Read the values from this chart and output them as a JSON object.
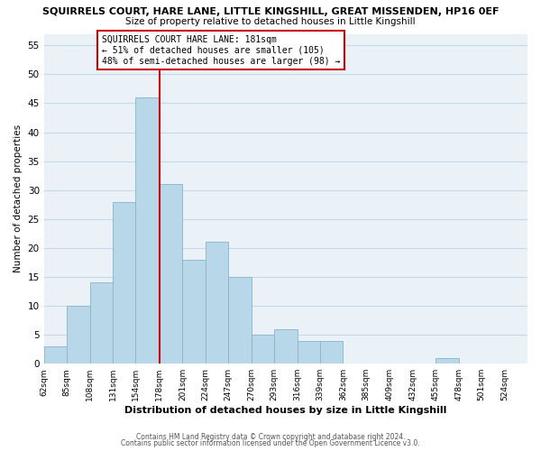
{
  "title1": "SQUIRRELS COURT, HARE LANE, LITTLE KINGSHILL, GREAT MISSENDEN, HP16 0EF",
  "title2": "Size of property relative to detached houses in Little Kingshill",
  "xlabel": "Distribution of detached houses by size in Little Kingshill",
  "ylabel": "Number of detached properties",
  "bin_labels": [
    "62sqm",
    "85sqm",
    "108sqm",
    "131sqm",
    "154sqm",
    "178sqm",
    "201sqm",
    "224sqm",
    "247sqm",
    "270sqm",
    "293sqm",
    "316sqm",
    "339sqm",
    "362sqm",
    "385sqm",
    "409sqm",
    "432sqm",
    "455sqm",
    "478sqm",
    "501sqm",
    "524sqm"
  ],
  "bin_edges": [
    62,
    85,
    108,
    131,
    154,
    178,
    201,
    224,
    247,
    270,
    293,
    316,
    339,
    362,
    385,
    409,
    432,
    455,
    478,
    501,
    524
  ],
  "counts": [
    3,
    10,
    14,
    28,
    46,
    31,
    18,
    21,
    15,
    5,
    6,
    4,
    4,
    0,
    0,
    0,
    0,
    1,
    0,
    0
  ],
  "bar_color": "#b8d8ea",
  "bar_edge_color": "#8ab4cc",
  "vline_x": 178,
  "vline_color": "#cc0000",
  "ylim": [
    0,
    57
  ],
  "yticks": [
    0,
    5,
    10,
    15,
    20,
    25,
    30,
    35,
    40,
    45,
    50,
    55
  ],
  "annotation_text_line1": "SQUIRRELS COURT HARE LANE: 181sqm",
  "annotation_text_line2": "← 51% of detached houses are smaller (105)",
  "annotation_text_line3": "48% of semi-detached houses are larger (98) →",
  "footer1": "Contains HM Land Registry data © Crown copyright and database right 2024.",
  "footer2": "Contains public sector information licensed under the Open Government Licence v3.0.",
  "background_color": "#ffffff",
  "plot_bg_color": "#eaf2f8",
  "grid_color": "#c8d8e8"
}
